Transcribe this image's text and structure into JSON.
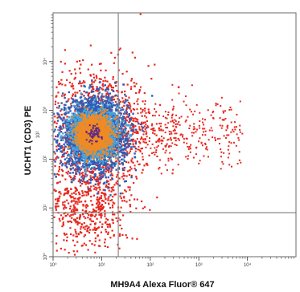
{
  "chart_data": {
    "type": "scatter",
    "plot_style": "flow cytometry density dot plot",
    "xlabel": "MH9A4 Alexa Fluor® 647",
    "ylabel": "UCHT1 (CD3) PE",
    "x_scale": "log",
    "y_scale": "log",
    "xlim": [
      1,
      100000
    ],
    "ylim": [
      1,
      100000
    ],
    "x_ticks": [
      "10⁰",
      "10¹",
      "10²",
      "10³",
      "10⁴"
    ],
    "y_ticks": [
      "10⁰",
      "10¹",
      "10²",
      "10³",
      "10⁴"
    ],
    "y_tick_label_extra": "10²",
    "gates": {
      "x": 22,
      "y": 8
    },
    "grid": false,
    "density_colors": {
      "low": "#e8271e",
      "mid_low": "#2f5db5",
      "mid": "#49a3da",
      "high": "#f08a24",
      "peak": "#5b2a86"
    },
    "main_population": {
      "x_center": 7,
      "y_center": 330,
      "x_spread_decades": 0.55,
      "y_spread_decades": 0.65
    },
    "tail_population": {
      "x_from": 25,
      "x_to": 8000,
      "y_center": 330,
      "y_spread_decades": 0.35
    },
    "low_cd3_population": {
      "x_center": 5,
      "y_center": 10,
      "x_spread_decades": 0.45,
      "y_spread_decades": 0.5
    }
  }
}
